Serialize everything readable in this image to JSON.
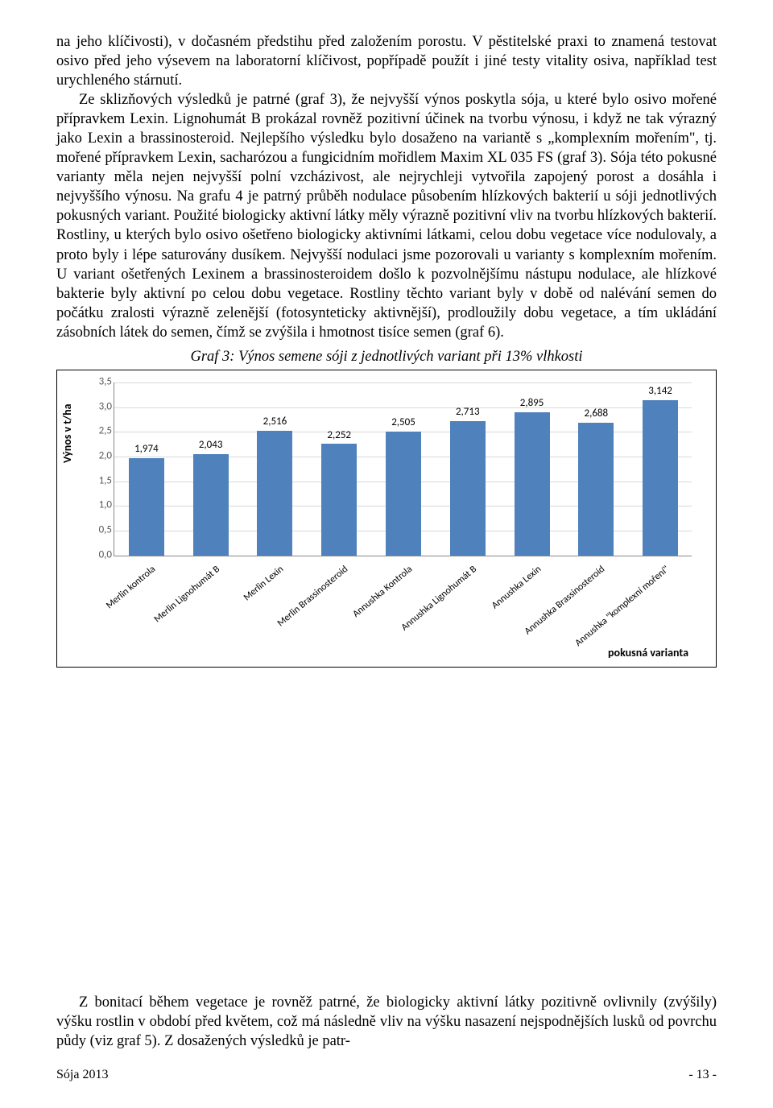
{
  "text": {
    "p1": "na jeho klíčivosti), v dočasném předstihu před založením porostu. V pěstitelské praxi to znamená testovat osivo před jeho výsevem na laboratorní klíčivost, popřípadě použít i jiné testy vitality osiva, například test urychleného stárnutí.",
    "p2": "Ze sklizňových výsledků je patrné (graf 3), že nejvyšší výnos poskytla sója, u které bylo osivo mořené přípravkem Lexin. Lignohumát B prokázal rovněž pozitivní účinek na tvorbu výnosu, i když ne tak výrazný jako Lexin a brassinosteroid. Nejlepšího výsledku bylo dosaženo na variantě s „komplexním mořením\", tj. mořené přípravkem Lexin, sacharózou a fungicidním mořidlem Maxim XL 035 FS (graf 3). Sója této pokusné varianty měla nejen nejvyšší polní vzcházivost, ale nejrychleji vytvořila zapojený porost a dosáhla i nejvyššího výnosu. Na grafu 4 je patrný průběh nodulace působením hlízkových bakterií u sóji jednotlivých pokusných variant. Použité biologicky aktivní látky měly výrazně pozitivní vliv na tvorbu hlízkových bakterií. Rostliny, u kterých bylo osivo ošetřeno biologicky aktivními látkami, celou dobu vegetace více nodulovaly, a proto byly i lépe saturovány dusíkem. Nejvyšší nodulaci jsme pozorovali u varianty s komplexním mořením. U variant ošetřených Lexinem a brassinosteroidem došlo k pozvolnějšímu nástupu nodulace, ale hlízkové bakterie byly aktivní po celou dobu vegetace. Rostliny těchto variant byly v době od nalévání semen do počátku zralosti výrazně zelenější (fotosynteticky aktivnější), prodloužily dobu vegetace, a tím ukládání zásobních látek do semen, čímž se zvýšila i hmotnost tisíce semen (graf 6).",
    "p3": "Z bonitací během vegetace je rovněž patrné, že biologicky aktivní látky pozitivně ovlivnily (zvýšily) výšku rostlin v období před květem, což má následně vliv na výšku nasazení nejspodnějších lusků od povrchu půdy (viz graf 5). Z dosažených výsledků je patr-"
  },
  "chart": {
    "title": "Graf 3: Výnos semene sóji z jednotlivých variant při 13% vlhkosti",
    "ylabel": "Výnos v t/ha",
    "xlabel": "pokusná varianta",
    "bar_color": "#4f81bd",
    "grid_color": "#d9d9d9",
    "ymax": 3.5,
    "yticks": [
      "0,0",
      "0,5",
      "1,0",
      "1,5",
      "2,0",
      "2,5",
      "3,0",
      "3,5"
    ],
    "categories": [
      "Merlin kontrola",
      "Merlin Lignohumát B",
      "Merlin Lexin",
      "Merlin  Brassinosteroid",
      "Annushka Kontrola",
      "Annushka Lignohumát B",
      "Annushka Lexin",
      "Annushka Brassinosteroid",
      "Annushka \"komplexní moření\""
    ],
    "values": [
      1.974,
      2.043,
      2.516,
      2.252,
      2.505,
      2.713,
      2.895,
      2.688,
      3.142
    ],
    "value_labels": [
      "1,974",
      "2,043",
      "2,516",
      "2,252",
      "2,505",
      "2,713",
      "2,895",
      "2,688",
      "3,142"
    ]
  },
  "footer": {
    "left": "Sója 2013",
    "right": "- 13 -"
  }
}
